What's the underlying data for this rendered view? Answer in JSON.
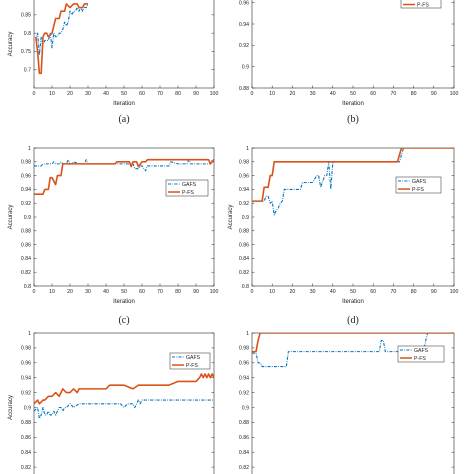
{
  "colors": {
    "gafs": "#0072BD",
    "pfs": "#D95319",
    "axis": "#262626",
    "background": "#ffffff"
  },
  "chart_data": [
    {
      "panel_label": "(a)",
      "type": "line",
      "xlabel": "Iteration",
      "ylabel": "Accuracy",
      "xlim": [
        0,
        100
      ],
      "ylim": [
        0.65,
        1.0
      ],
      "yticks": [
        "0.7",
        "0.75",
        "0.8",
        "0.85"
      ],
      "xticks": [
        "0",
        "10",
        "20",
        "30",
        "40",
        "50",
        "60",
        "70",
        "80",
        "90",
        "100"
      ],
      "legend": false,
      "series": [
        {
          "key": "gafs",
          "x": [
            1,
            2,
            3,
            4,
            5,
            6,
            8,
            9,
            10,
            11,
            12,
            13,
            14,
            15,
            16,
            17,
            18,
            19,
            20,
            21,
            22,
            23,
            24,
            25,
            26,
            27,
            28,
            29,
            30
          ],
          "y": [
            0.78,
            0.8,
            0.74,
            0.79,
            0.77,
            0.78,
            0.78,
            0.8,
            0.76,
            0.8,
            0.79,
            0.79,
            0.8,
            0.8,
            0.81,
            0.83,
            0.82,
            0.83,
            0.86,
            0.85,
            0.86,
            0.86,
            0.87,
            0.86,
            0.87,
            0.86,
            0.87,
            0.87,
            0.88
          ]
        },
        {
          "key": "pfs",
          "x": [
            1,
            2,
            3,
            4,
            5,
            6,
            7,
            8,
            10,
            12,
            14,
            15,
            17,
            18,
            20,
            22,
            24,
            25,
            27,
            28,
            30
          ],
          "y": [
            0.79,
            0.75,
            0.69,
            0.69,
            0.79,
            0.8,
            0.8,
            0.79,
            0.8,
            0.84,
            0.84,
            0.86,
            0.86,
            0.88,
            0.87,
            0.88,
            0.88,
            0.87,
            0.87,
            0.88,
            0.88
          ]
        }
      ]
    },
    {
      "panel_label": "(b)",
      "type": "line",
      "xlabel": "Iteration",
      "ylabel": "",
      "xlim": [
        0,
        100
      ],
      "ylim": [
        0.88,
        1.0
      ],
      "yticks": [
        "0.88",
        "0.9",
        "0.92",
        "0.94",
        "0.96"
      ],
      "xticks": [
        "0",
        "10",
        "20",
        "30",
        "40",
        "50",
        "60",
        "70",
        "80",
        "90",
        "100"
      ],
      "legend": true,
      "legend_position": "top-right",
      "series": [
        {
          "key": "gafs",
          "x": [],
          "y": []
        },
        {
          "key": "pfs",
          "name": "P-FS",
          "x": [],
          "y": []
        }
      ]
    },
    {
      "panel_label": "(c)",
      "type": "line",
      "xlabel": "Iteration",
      "ylabel": "Accuracy",
      "xlim": [
        0,
        100
      ],
      "ylim": [
        0.8,
        1.0
      ],
      "yticks": [
        "0.8",
        "0.82",
        "0.84",
        "0.86",
        "0.88",
        "0.9",
        "0.92",
        "0.94",
        "0.96",
        "0.98",
        "1"
      ],
      "xticks": [
        "0",
        "10",
        "20",
        "30",
        "40",
        "50",
        "60",
        "70",
        "80",
        "90",
        "100"
      ],
      "legend": true,
      "legend_position": "center-right",
      "series": [
        {
          "key": "gafs",
          "name": "GAFS",
          "x": [
            0,
            4,
            5,
            10,
            11,
            12,
            14,
            15,
            16,
            18,
            19,
            20,
            21,
            22,
            25,
            28,
            29,
            30,
            35,
            40,
            45,
            50,
            55,
            56,
            58,
            59,
            60,
            62,
            63,
            70,
            75,
            76,
            80,
            85,
            86,
            87,
            90,
            95,
            98,
            99,
            100
          ],
          "y": [
            0.974,
            0.974,
            0.977,
            0.977,
            0.98,
            0.977,
            0.977,
            0.98,
            0.977,
            0.977,
            0.983,
            0.977,
            0.977,
            0.98,
            0.977,
            0.977,
            0.983,
            0.977,
            0.977,
            0.977,
            0.977,
            0.977,
            0.977,
            0.97,
            0.97,
            0.974,
            0.974,
            0.967,
            0.974,
            0.974,
            0.974,
            0.98,
            0.977,
            0.977,
            0.983,
            0.977,
            0.977,
            0.977,
            0.977,
            0.983,
            0.983
          ]
        },
        {
          "key": "pfs",
          "name": "P-FS",
          "x": [
            0,
            5,
            6,
            8,
            9,
            10,
            12,
            13,
            15,
            16,
            20,
            30,
            40,
            45,
            46,
            50,
            53,
            54,
            55,
            57,
            58,
            60,
            62,
            63,
            70,
            80,
            90,
            97,
            98,
            100
          ],
          "y": [
            0.933,
            0.933,
            0.94,
            0.94,
            0.957,
            0.957,
            0.947,
            0.96,
            0.96,
            0.977,
            0.977,
            0.977,
            0.977,
            0.977,
            0.98,
            0.98,
            0.98,
            0.973,
            0.98,
            0.98,
            0.973,
            0.98,
            0.98,
            0.983,
            0.983,
            0.983,
            0.983,
            0.983,
            0.977,
            0.983
          ]
        }
      ]
    },
    {
      "panel_label": "(d)",
      "type": "line",
      "xlabel": "Iteration",
      "ylabel": "Accuracy",
      "xlim": [
        0,
        100
      ],
      "ylim": [
        0.8,
        1.0
      ],
      "yticks": [
        "0.8",
        "0.82",
        "0.84",
        "0.86",
        "0.88",
        "0.9",
        "0.92",
        "0.94",
        "0.96",
        "0.98",
        "1"
      ],
      "xticks": [
        "0",
        "10",
        "20",
        "30",
        "40",
        "50",
        "60",
        "70",
        "80",
        "90",
        "100"
      ],
      "legend": true,
      "legend_position": "center-right",
      "series": [
        {
          "key": "gafs",
          "name": "GAFS",
          "x": [
            0,
            6,
            7,
            8,
            9,
            10,
            11,
            12,
            13,
            14,
            15,
            16,
            20,
            24,
            25,
            28,
            30,
            32,
            33,
            34,
            36,
            37,
            38,
            39,
            40,
            41,
            50,
            60,
            70,
            73,
            74,
            75,
            76,
            80,
            90,
            100
          ],
          "y": [
            0.923,
            0.923,
            0.93,
            0.93,
            0.92,
            0.923,
            0.903,
            0.91,
            0.913,
            0.92,
            0.923,
            0.94,
            0.94,
            0.94,
            0.95,
            0.95,
            0.95,
            0.96,
            0.96,
            0.943,
            0.96,
            0.96,
            0.98,
            0.94,
            0.98,
            0.98,
            0.98,
            0.98,
            0.98,
            0.98,
            0.99,
            1.0,
            1.0,
            1.0,
            1.0,
            1.0
          ]
        },
        {
          "key": "pfs",
          "name": "P-FS",
          "x": [
            0,
            5,
            6,
            8,
            9,
            10,
            11,
            12,
            20,
            30,
            40,
            50,
            60,
            70,
            72,
            73,
            74,
            80,
            90,
            100
          ],
          "y": [
            0.923,
            0.923,
            0.943,
            0.943,
            0.96,
            0.96,
            0.98,
            0.98,
            0.98,
            0.98,
            0.98,
            0.98,
            0.98,
            0.98,
            0.98,
            0.99,
            1.0,
            1.0,
            1.0,
            1.0
          ]
        }
      ]
    },
    {
      "panel_label": "",
      "type": "line",
      "xlabel": "",
      "ylabel": "Accuracy",
      "xlim": [
        0,
        100
      ],
      "ylim": [
        0.8,
        1.0
      ],
      "yticks": [
        "0.82",
        "0.84",
        "0.86",
        "0.88",
        "0.9",
        "0.92",
        "0.94",
        "0.96",
        "0.98",
        "1"
      ],
      "xticks": [],
      "legend": true,
      "legend_position": "top-right",
      "series": [
        {
          "key": "gafs",
          "name": "GAFS",
          "x": [
            0,
            2,
            3,
            4,
            5,
            6,
            7,
            8,
            9,
            10,
            11,
            12,
            13,
            14,
            15,
            16,
            17,
            18,
            20,
            22,
            25,
            28,
            30,
            35,
            40,
            42,
            45,
            48,
            50,
            52,
            55,
            56,
            57,
            58,
            59,
            60,
            62,
            65,
            70,
            75,
            80,
            85,
            90,
            95,
            100
          ],
          "y": [
            0.895,
            0.9,
            0.885,
            0.89,
            0.9,
            0.89,
            0.89,
            0.895,
            0.89,
            0.89,
            0.895,
            0.89,
            0.895,
            0.9,
            0.9,
            0.895,
            0.9,
            0.9,
            0.905,
            0.9,
            0.905,
            0.905,
            0.905,
            0.905,
            0.905,
            0.905,
            0.905,
            0.905,
            0.9,
            0.905,
            0.905,
            0.9,
            0.905,
            0.91,
            0.905,
            0.91,
            0.91,
            0.91,
            0.91,
            0.91,
            0.91,
            0.91,
            0.91,
            0.91,
            0.91
          ]
        },
        {
          "key": "pfs",
          "name": "P-FS",
          "x": [
            0,
            2,
            3,
            5,
            6,
            8,
            10,
            12,
            14,
            15,
            16,
            18,
            20,
            22,
            24,
            25,
            28,
            30,
            35,
            40,
            42,
            45,
            48,
            50,
            55,
            58,
            60,
            62,
            65,
            70,
            75,
            80,
            85,
            90,
            92,
            93,
            94,
            95,
            96,
            97,
            98,
            99,
            100
          ],
          "y": [
            0.905,
            0.91,
            0.905,
            0.91,
            0.91,
            0.915,
            0.915,
            0.92,
            0.915,
            0.92,
            0.925,
            0.92,
            0.92,
            0.925,
            0.92,
            0.925,
            0.925,
            0.925,
            0.925,
            0.925,
            0.93,
            0.93,
            0.93,
            0.93,
            0.925,
            0.93,
            0.93,
            0.93,
            0.93,
            0.93,
            0.93,
            0.935,
            0.935,
            0.935,
            0.94,
            0.945,
            0.94,
            0.945,
            0.94,
            0.945,
            0.94,
            0.945,
            0.94
          ]
        }
      ]
    },
    {
      "panel_label": "",
      "type": "line",
      "xlabel": "",
      "ylabel": "",
      "xlim": [
        0,
        100
      ],
      "ylim": [
        0.8,
        1.0
      ],
      "yticks": [
        "0.82",
        "0.84",
        "0.86",
        "0.88",
        "0.9",
        "0.92",
        "0.94",
        "0.96",
        "0.98",
        "1"
      ],
      "xticks": [],
      "legend": true,
      "legend_position": "top-right",
      "series": [
        {
          "key": "gafs",
          "name": "GAFS",
          "x": [
            0,
            2,
            3,
            4,
            5,
            6,
            7,
            8,
            10,
            12,
            14,
            16,
            17,
            18,
            19,
            20,
            30,
            40,
            50,
            60,
            63,
            64,
            65,
            66,
            70,
            80,
            85,
            86,
            87,
            90,
            100
          ],
          "y": [
            0.973,
            0.973,
            0.96,
            0.96,
            0.955,
            0.955,
            0.955,
            0.955,
            0.955,
            0.955,
            0.955,
            0.955,
            0.955,
            0.975,
            0.975,
            0.975,
            0.975,
            0.975,
            0.975,
            0.975,
            0.975,
            0.99,
            0.99,
            0.975,
            0.975,
            0.975,
            0.975,
            0.99,
            1.0,
            1.0,
            1.0
          ]
        },
        {
          "key": "pfs",
          "name": "P-FS",
          "x": [
            0,
            2,
            3,
            4,
            10,
            20,
            40,
            60,
            80,
            100
          ],
          "y": [
            0.975,
            0.975,
            0.99,
            1.0,
            1.0,
            1.0,
            1.0,
            1.0,
            1.0,
            1.0
          ]
        }
      ]
    }
  ]
}
